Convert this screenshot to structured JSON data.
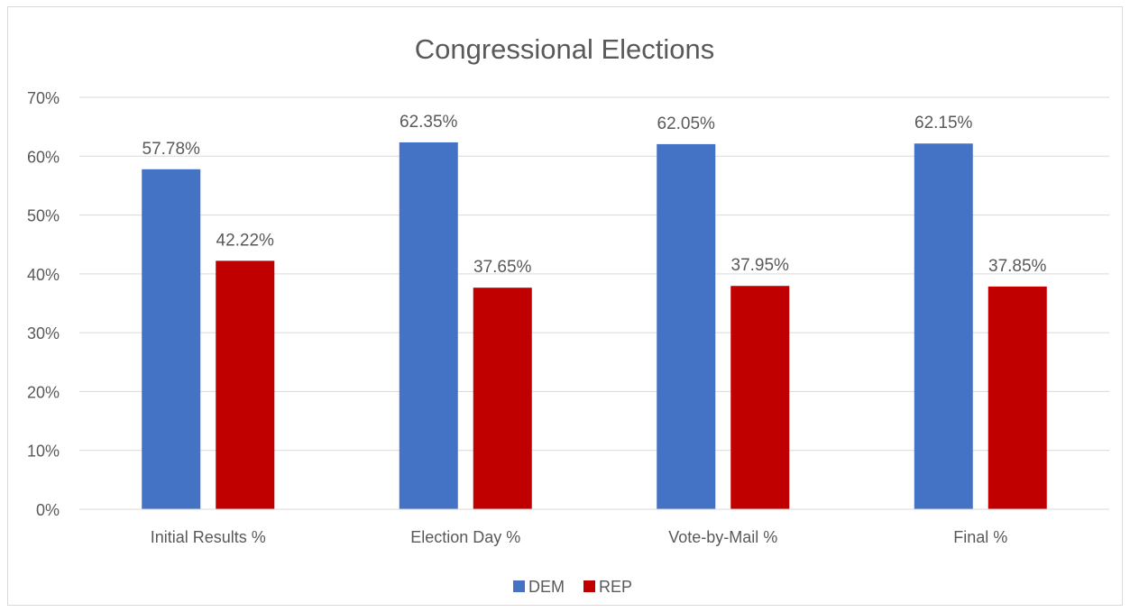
{
  "chart_data": {
    "type": "bar",
    "title": "Congressional Elections",
    "xlabel": "",
    "ylabel": "",
    "categories": [
      "Initial Results %",
      "Election Day %",
      "Vote-by-Mail %",
      "Final %"
    ],
    "series": [
      {
        "name": "DEM",
        "color": "#4472c4",
        "values": [
          57.78,
          62.35,
          62.05,
          62.15
        ],
        "labels": [
          "57.78%",
          "62.35%",
          "62.05%",
          "62.15%"
        ]
      },
      {
        "name": "REP",
        "color": "#c00000",
        "values": [
          42.22,
          37.65,
          37.95,
          37.85
        ],
        "labels": [
          "42.22%",
          "37.65%",
          "37.95%",
          "37.85%"
        ]
      }
    ],
    "ylim": [
      0,
      70
    ],
    "yticks": [
      0,
      10,
      20,
      30,
      40,
      50,
      60,
      70
    ],
    "ytick_labels": [
      "0%",
      "10%",
      "20%",
      "30%",
      "40%",
      "50%",
      "60%",
      "70%"
    ],
    "grid": true,
    "legend_position": "bottom"
  }
}
